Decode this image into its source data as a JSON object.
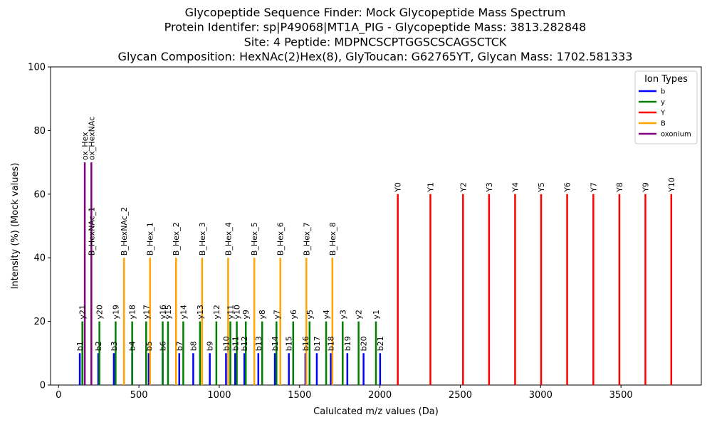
{
  "chart_data": {
    "type": "bar",
    "title_lines": [
      "Glycopeptide Sequence Finder: Mock Glycopeptide Mass Spectrum",
      "Protein Identifer: sp|P49068|MT1A_PIG - Glycopeptide Mass: 3813.282848",
      "Site: 4 Peptide: MDPNCSCPTGGSCSCAGSCTCK",
      "Glycan Composition: HexNAc(2)Hex(8), GlyToucan: G62765YT, Glycan Mass: 1702.581333"
    ],
    "xlabel": "Calulcated m/z values (Da)",
    "ylabel": "Intensity (%) (Mock values)",
    "xlim": [
      -50,
      4000
    ],
    "ylim": [
      0,
      100
    ],
    "xticks": [
      0,
      500,
      1000,
      1500,
      2000,
      2500,
      3000,
      3500
    ],
    "yticks": [
      0,
      20,
      40,
      60,
      80,
      100
    ],
    "legend": {
      "title": "Ion Types",
      "placement": "top-right",
      "entries": [
        {
          "label": "b",
          "color": "#0000ff"
        },
        {
          "label": "y",
          "color": "#008000"
        },
        {
          "label": "Y",
          "color": "#ff0000"
        },
        {
          "label": "B",
          "color": "#ffa500"
        },
        {
          "label": "oxonium",
          "color": "#800080"
        }
      ]
    },
    "series": [
      {
        "name": "b",
        "color": "#0000ff",
        "intensity": 10,
        "peaks": [
          {
            "label": "b1",
            "x": 132
          },
          {
            "label": "b2",
            "x": 247
          },
          {
            "label": "b3",
            "x": 344
          },
          {
            "label": "b4",
            "x": 458
          },
          {
            "label": "b5",
            "x": 561
          },
          {
            "label": "b6",
            "x": 648
          },
          {
            "label": "b7",
            "x": 751
          },
          {
            "label": "b8",
            "x": 838
          },
          {
            "label": "b9",
            "x": 941
          },
          {
            "label": "b10",
            "x": 1042
          },
          {
            "label": "b11",
            "x": 1099
          },
          {
            "label": "b12",
            "x": 1156
          },
          {
            "label": "b13",
            "x": 1243
          },
          {
            "label": "b14",
            "x": 1346
          },
          {
            "label": "b15",
            "x": 1433
          },
          {
            "label": "b16",
            "x": 1536
          },
          {
            "label": "b17",
            "x": 1607
          },
          {
            "label": "b18",
            "x": 1694
          },
          {
            "label": "b19",
            "x": 1797
          },
          {
            "label": "b20",
            "x": 1898
          },
          {
            "label": "b21",
            "x": 2001
          }
        ]
      },
      {
        "name": "y",
        "color": "#008000",
        "intensity": 20,
        "peaks": [
          {
            "label": "y21",
            "x": 148
          },
          {
            "label": "y20",
            "x": 254
          },
          {
            "label": "y19",
            "x": 355
          },
          {
            "label": "y18",
            "x": 458
          },
          {
            "label": "y17",
            "x": 545
          },
          {
            "label": "y16",
            "x": 648
          },
          {
            "label": "y15",
            "x": 681
          },
          {
            "label": "y14",
            "x": 776
          },
          {
            "label": "y13",
            "x": 880
          },
          {
            "label": "y12",
            "x": 982
          },
          {
            "label": "y11",
            "x": 1069
          },
          {
            "label": "y10",
            "x": 1109
          },
          {
            "label": "y9",
            "x": 1165
          },
          {
            "label": "y8",
            "x": 1267
          },
          {
            "label": "y7",
            "x": 1356
          },
          {
            "label": "y6",
            "x": 1460
          },
          {
            "label": "y5",
            "x": 1562
          },
          {
            "label": "y4",
            "x": 1665
          },
          {
            "label": "y3",
            "x": 1768
          },
          {
            "label": "y2",
            "x": 1867
          },
          {
            "label": "y1",
            "x": 1975
          }
        ]
      },
      {
        "name": "Y",
        "color": "#ff0000",
        "intensity": 60,
        "peaks": [
          {
            "label": "Y0",
            "x": 2111
          },
          {
            "label": "Y1",
            "x": 2314
          },
          {
            "label": "Y2",
            "x": 2517
          },
          {
            "label": "Y3",
            "x": 2679
          },
          {
            "label": "Y4",
            "x": 2841
          },
          {
            "label": "Y5",
            "x": 3003
          },
          {
            "label": "Y6",
            "x": 3165
          },
          {
            "label": "Y7",
            "x": 3328
          },
          {
            "label": "Y8",
            "x": 3490
          },
          {
            "label": "Y9",
            "x": 3652
          },
          {
            "label": "Y10",
            "x": 3813
          }
        ]
      },
      {
        "name": "B",
        "color": "#ffa500",
        "intensity": 40,
        "peaks": [
          {
            "label": "B_HexNAc_1",
            "x": 204
          },
          {
            "label": "B_HexNAc_2",
            "x": 407
          },
          {
            "label": "B_Hex_1",
            "x": 569
          },
          {
            "label": "B_Hex_2",
            "x": 731
          },
          {
            "label": "B_Hex_3",
            "x": 893
          },
          {
            "label": "B_Hex_4",
            "x": 1055
          },
          {
            "label": "B_Hex_5",
            "x": 1218
          },
          {
            "label": "B_Hex_6",
            "x": 1380
          },
          {
            "label": "B_Hex_7",
            "x": 1542
          },
          {
            "label": "B_Hex_8",
            "x": 1704
          }
        ]
      },
      {
        "name": "oxonium",
        "color": "#800080",
        "intensity": 70,
        "peaks": [
          {
            "label": "ox_Hex",
            "x": 163
          },
          {
            "label": "ox_HexNAc",
            "x": 204
          }
        ]
      }
    ]
  }
}
